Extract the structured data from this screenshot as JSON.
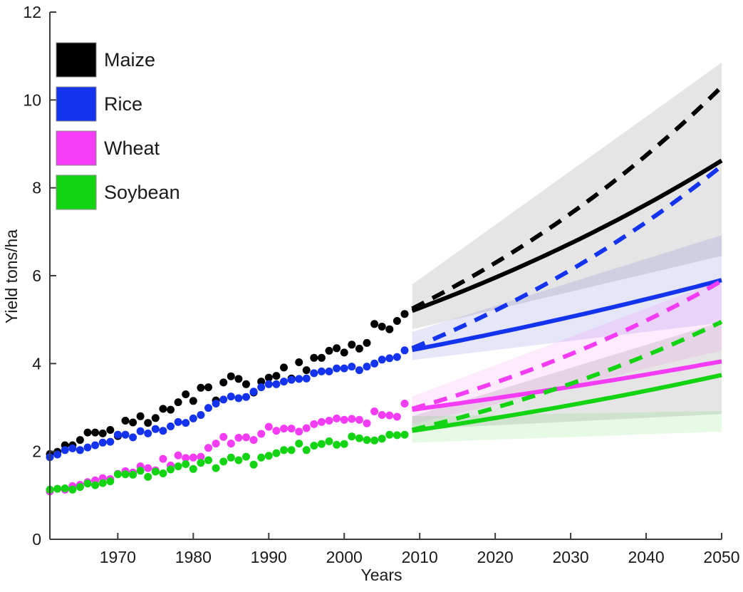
{
  "figure": {
    "background": "#ffffff"
  },
  "chart_data": {
    "type": "scatter",
    "title": "",
    "xlabel": "Years",
    "ylabel": "Yield tons/ha",
    "xlim": [
      1961,
      2050
    ],
    "ylim": [
      0,
      12
    ],
    "grid": false,
    "x_ticks": [
      1970,
      1980,
      1990,
      2000,
      2010,
      2020,
      2030,
      2040,
      2050
    ],
    "y_ticks": [
      0,
      2,
      4,
      6,
      8,
      10,
      12
    ],
    "legend": {
      "position": "top-left",
      "entries": [
        {
          "label": "Maize",
          "color": "#000000"
        },
        {
          "label": "Rice",
          "color": "#1433ee"
        },
        {
          "label": "Wheat",
          "color": "#f53cf5"
        },
        {
          "label": "Soybean",
          "color": "#12d412"
        }
      ]
    },
    "historical": {
      "start_year": 1961,
      "end_year": 2008,
      "series": [
        {
          "name": "Maize",
          "color": "#000000",
          "values": [
            1.94,
            1.99,
            2.14,
            2.14,
            2.26,
            2.43,
            2.43,
            2.41,
            2.49,
            2.35,
            2.7,
            2.66,
            2.8,
            2.65,
            2.76,
            2.97,
            2.95,
            3.12,
            3.3,
            3.15,
            3.45,
            3.46,
            3.16,
            3.57,
            3.71,
            3.65,
            3.53,
            3.34,
            3.59,
            3.68,
            3.72,
            3.91,
            3.66,
            4.03,
            3.85,
            4.13,
            4.13,
            4.29,
            4.35,
            4.25,
            4.43,
            4.34,
            4.47,
            4.9,
            4.84,
            4.78,
            4.97,
            5.13
          ]
        },
        {
          "name": "Rice",
          "color": "#1433ee",
          "values": [
            1.87,
            1.93,
            2.03,
            2.07,
            2.03,
            2.09,
            2.14,
            2.2,
            2.22,
            2.38,
            2.38,
            2.32,
            2.46,
            2.41,
            2.51,
            2.47,
            2.57,
            2.67,
            2.65,
            2.75,
            2.83,
            2.99,
            3.09,
            3.18,
            3.25,
            3.21,
            3.24,
            3.36,
            3.46,
            3.53,
            3.53,
            3.59,
            3.63,
            3.65,
            3.66,
            3.78,
            3.82,
            3.82,
            3.89,
            3.89,
            3.93,
            3.85,
            3.93,
            4.0,
            4.09,
            4.12,
            4.15,
            4.3
          ]
        },
        {
          "name": "Wheat",
          "color": "#f53cf5",
          "values": [
            1.09,
            1.15,
            1.13,
            1.21,
            1.24,
            1.3,
            1.34,
            1.39,
            1.37,
            1.49,
            1.55,
            1.52,
            1.66,
            1.62,
            1.57,
            1.83,
            1.68,
            1.91,
            1.85,
            1.86,
            1.88,
            2.08,
            2.18,
            2.33,
            2.18,
            2.31,
            2.32,
            2.26,
            2.4,
            2.56,
            2.47,
            2.52,
            2.52,
            2.45,
            2.53,
            2.62,
            2.67,
            2.7,
            2.75,
            2.72,
            2.74,
            2.72,
            2.64,
            2.91,
            2.83,
            2.82,
            2.79,
            3.09
          ]
        },
        {
          "name": "Soybean",
          "color": "#12d412",
          "values": [
            1.13,
            1.15,
            1.16,
            1.13,
            1.19,
            1.27,
            1.23,
            1.28,
            1.32,
            1.48,
            1.48,
            1.47,
            1.56,
            1.42,
            1.54,
            1.5,
            1.59,
            1.66,
            1.71,
            1.6,
            1.74,
            1.8,
            1.62,
            1.77,
            1.86,
            1.8,
            1.88,
            1.7,
            1.86,
            1.9,
            1.96,
            2.03,
            2.03,
            2.18,
            2.03,
            2.13,
            2.17,
            2.23,
            2.15,
            2.17,
            2.34,
            2.3,
            2.26,
            2.25,
            2.29,
            2.38,
            2.37,
            2.38
          ]
        }
      ],
      "marker_radius": 5.5
    },
    "projections": [
      {
        "name": "maize-trend",
        "color": "#000000",
        "style": "solid",
        "x0": 2009,
        "x1": 2050,
        "y0": 5.2,
        "y1": 8.62
      },
      {
        "name": "rice-trend",
        "color": "#1433ee",
        "style": "solid",
        "x0": 2009,
        "x1": 2050,
        "y0": 4.31,
        "y1": 5.9
      },
      {
        "name": "wheat-trend",
        "color": "#f53cf5",
        "style": "solid",
        "x0": 2009,
        "x1": 2050,
        "y0": 2.95,
        "y1": 4.05
      },
      {
        "name": "soybean-trend",
        "color": "#12d412",
        "style": "solid",
        "x0": 2009,
        "x1": 2050,
        "y0": 2.47,
        "y1": 3.74
      },
      {
        "name": "maize-doubling",
        "color": "#000000",
        "style": "dashed",
        "x0": 2009,
        "x1": 2050,
        "y0": 5.25,
        "y1": 10.3
      },
      {
        "name": "rice-doubling",
        "color": "#1433ee",
        "style": "dashed",
        "x0": 2009,
        "x1": 2050,
        "y0": 4.35,
        "y1": 8.5
      },
      {
        "name": "wheat-doubling",
        "color": "#f53cf5",
        "style": "dashed",
        "x0": 2009,
        "x1": 2050,
        "y0": 2.97,
        "y1": 5.88
      },
      {
        "name": "soybean-doubling",
        "color": "#12d412",
        "style": "dashed",
        "x0": 2009,
        "x1": 2050,
        "y0": 2.49,
        "y1": 4.95
      }
    ],
    "confidence_bands": [
      {
        "name": "maize-ci",
        "fill": "rgba(110,110,110,0.18)",
        "points": [
          [
            2009,
            4.78
          ],
          [
            2050,
            6.45
          ],
          [
            2050,
            10.85
          ],
          [
            2009,
            5.8
          ]
        ]
      },
      {
        "name": "soybean-wide-ci",
        "fill": "rgba(110,110,110,0.18)",
        "points": [
          [
            2009,
            2.5
          ],
          [
            2050,
            2.85
          ],
          [
            2050,
            4.95
          ],
          [
            2009,
            2.8
          ]
        ]
      },
      {
        "name": "rice-ci",
        "fill": "rgba(80,80,215,0.14)",
        "points": [
          [
            2009,
            4.08
          ],
          [
            2050,
            4.93
          ],
          [
            2050,
            6.92
          ],
          [
            2009,
            4.72
          ]
        ]
      },
      {
        "name": "wheat-ci",
        "fill": "rgba(250,60,250,0.10)",
        "points": [
          [
            2009,
            2.62
          ],
          [
            2050,
            4.3
          ],
          [
            2050,
            5.9
          ],
          [
            2009,
            3.25
          ]
        ]
      },
      {
        "name": "soybean-ci",
        "fill": "rgba(30,205,30,0.11)",
        "points": [
          [
            2009,
            2.2
          ],
          [
            2050,
            2.45
          ],
          [
            2050,
            2.92
          ],
          [
            2009,
            2.8
          ]
        ]
      }
    ],
    "line_width": 6,
    "dash_pattern": [
      19,
      13
    ],
    "axis_color": "#3c3c3c"
  }
}
